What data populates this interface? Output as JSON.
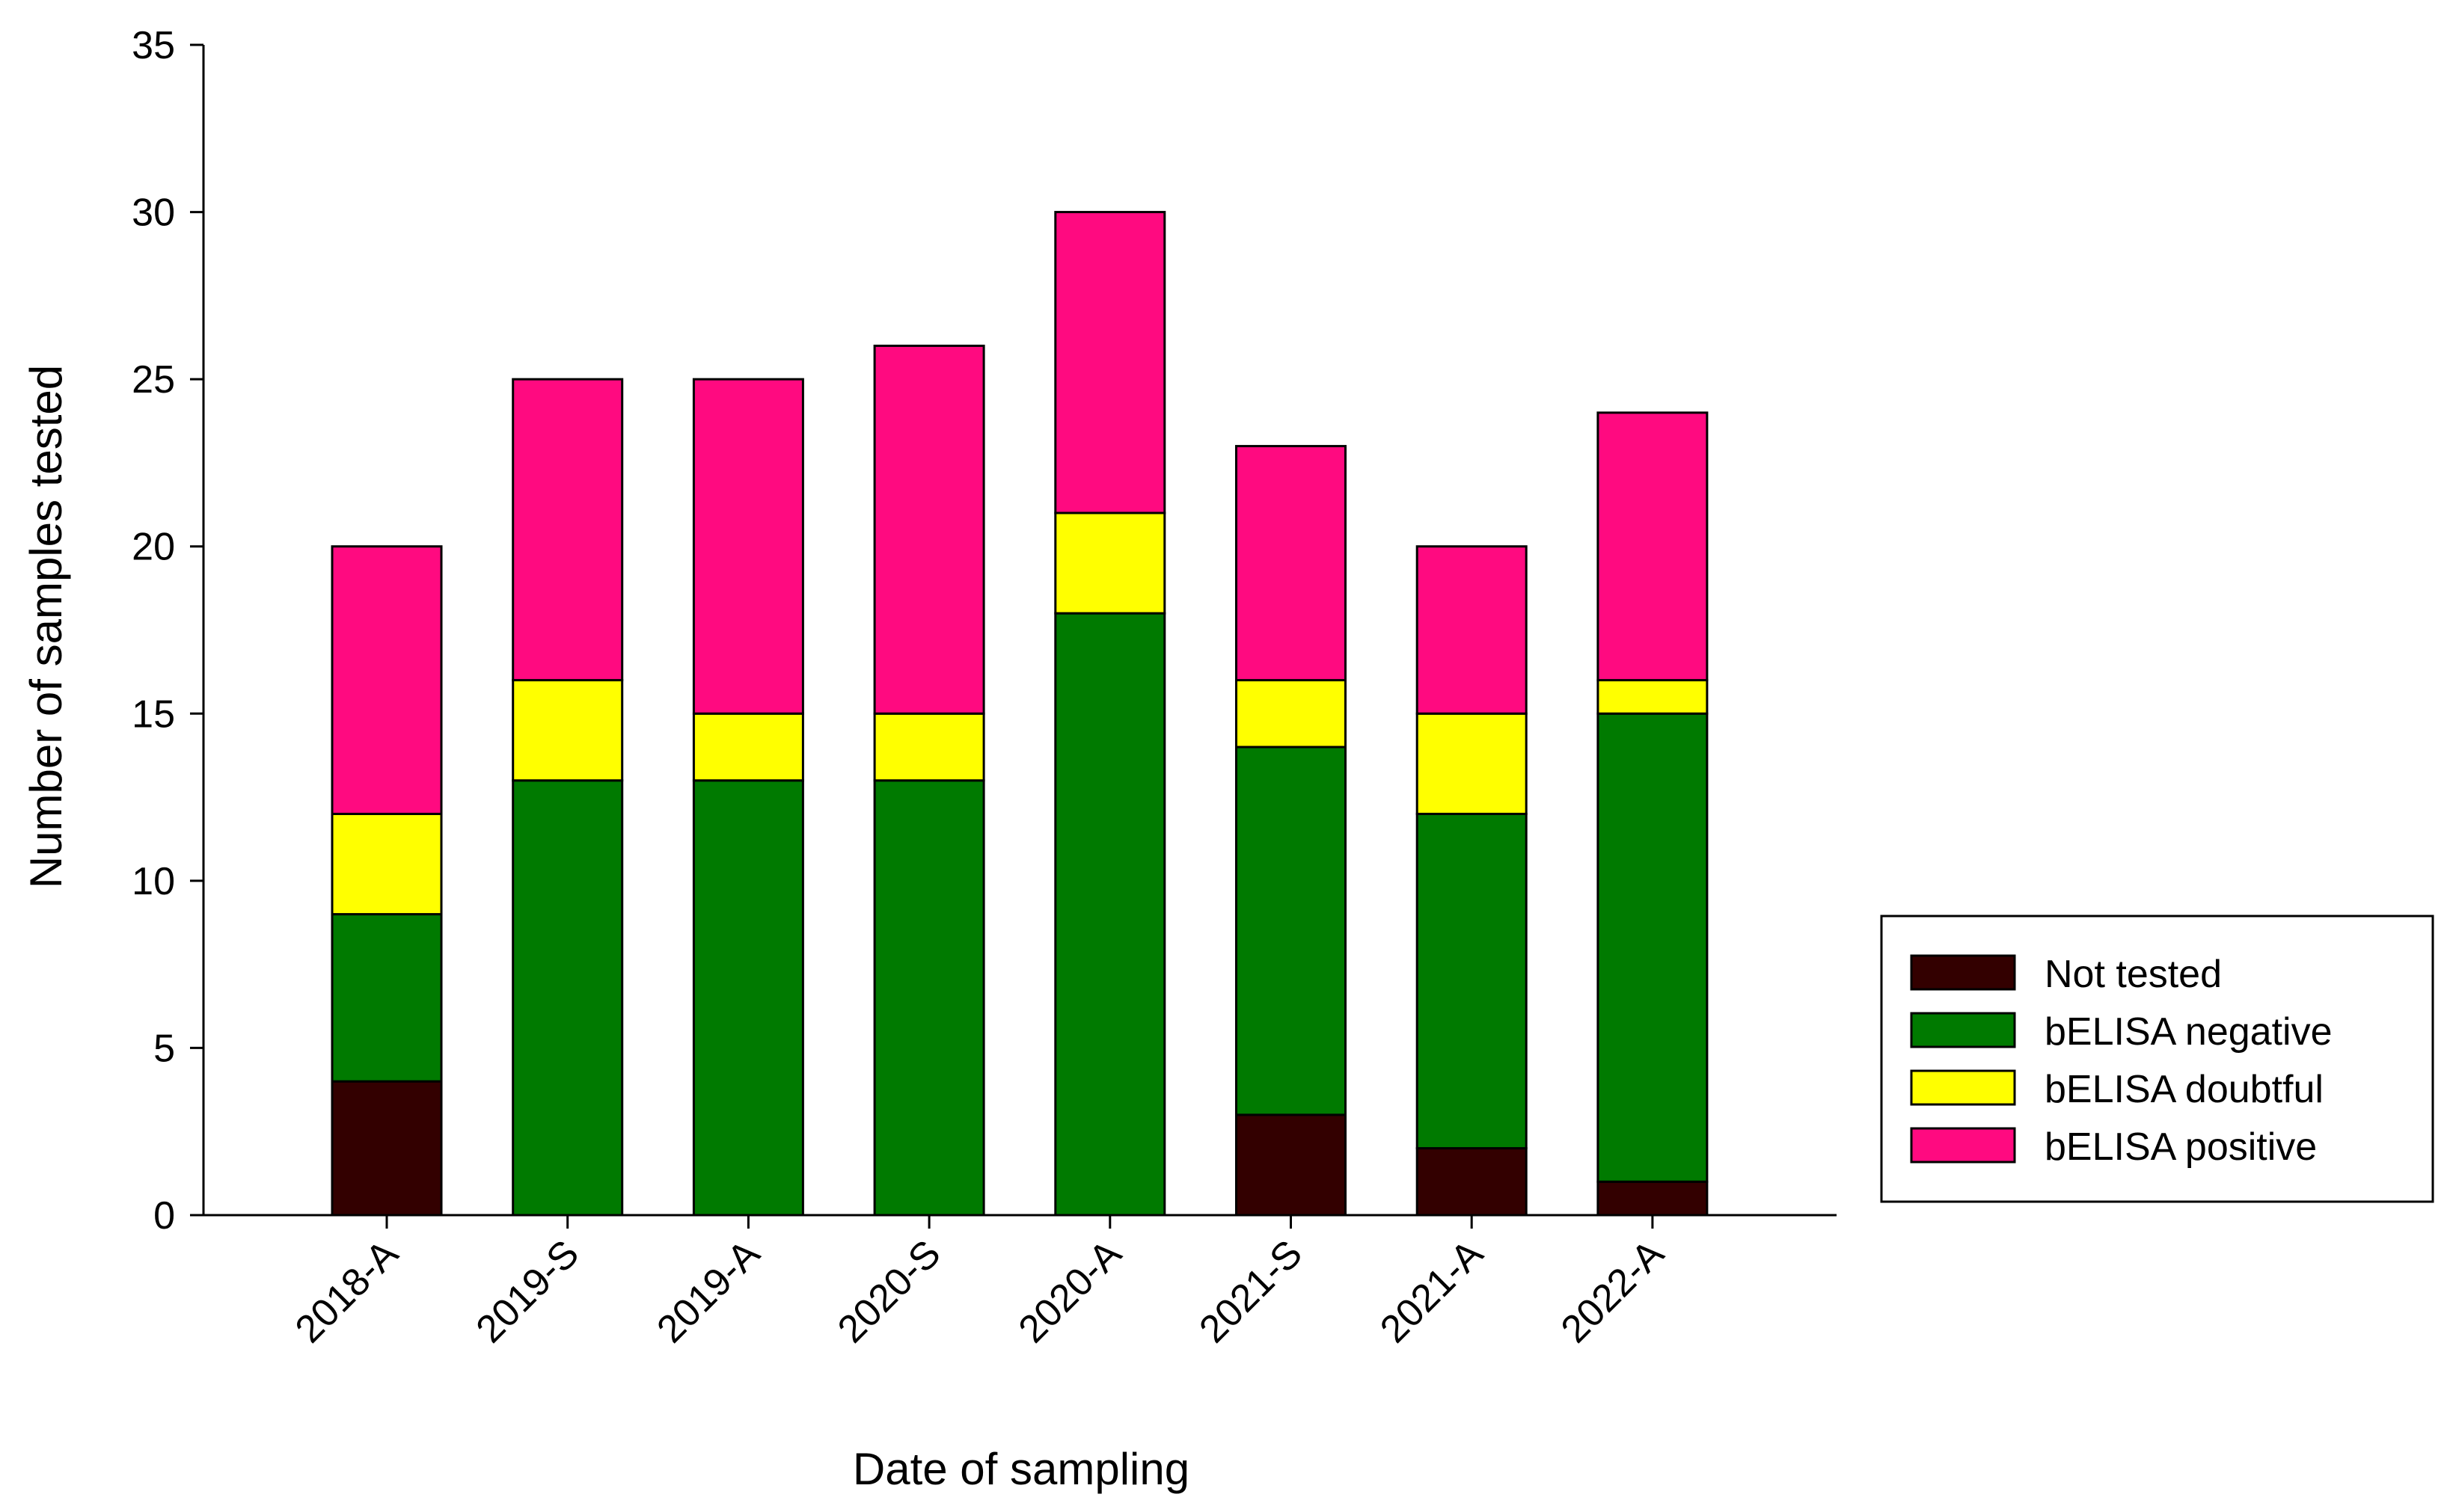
{
  "chart_data": {
    "type": "bar",
    "stacked": true,
    "title": "",
    "xlabel": "Date of sampling",
    "ylabel": "Number of samples tested",
    "ylim": [
      0,
      35
    ],
    "yticks": [
      0,
      5,
      10,
      15,
      20,
      25,
      30,
      35
    ],
    "categories": [
      "2018-A",
      "2019-S",
      "2019-A",
      "2020-S",
      "2020-A",
      "2021-S",
      "2021-A",
      "2022-A"
    ],
    "series": [
      {
        "name": "Not tested",
        "color": "#330000",
        "values": [
          4,
          0,
          0,
          0,
          0,
          3,
          2,
          1
        ]
      },
      {
        "name": "bELISA negative",
        "color": "#007a00",
        "values": [
          5,
          13,
          13,
          13,
          18,
          11,
          10,
          14
        ]
      },
      {
        "name": "bELISA doubtful",
        "color": "#ffff00",
        "values": [
          3,
          3,
          2,
          2,
          3,
          2,
          3,
          1
        ]
      },
      {
        "name": "bELISA positive",
        "color": "#ff0a80",
        "values": [
          8,
          9,
          10,
          11,
          9,
          7,
          5,
          8
        ]
      }
    ],
    "legend_position": "right"
  }
}
